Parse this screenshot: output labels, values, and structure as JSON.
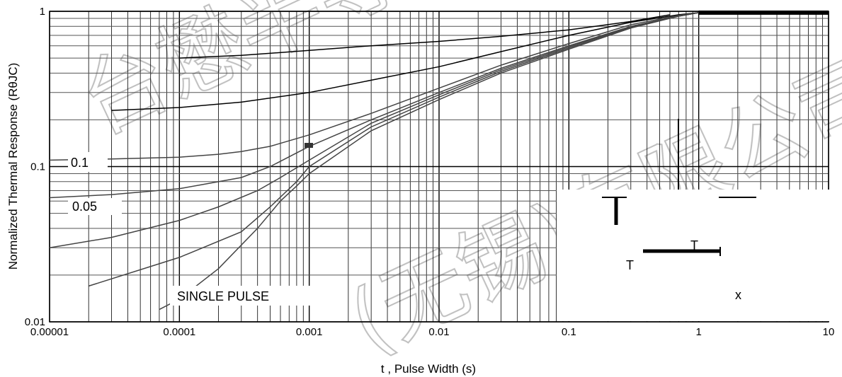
{
  "chart_data": {
    "type": "line",
    "xlabel": "t , Pulse Width (s)",
    "ylabel": "Normalized Thermal Response (RθJC)",
    "x_scale": "log",
    "y_scale": "log",
    "xlim": [
      1e-05,
      10
    ],
    "ylim": [
      0.01,
      1
    ],
    "grid": true,
    "x_ticks": [
      "0.00001",
      "0.0001",
      "0.001",
      "0.01",
      "0.1",
      "1",
      "10"
    ],
    "y_ticks": [
      "0.01",
      "0.1",
      "1"
    ],
    "annotations": [
      "0.1",
      "0.05",
      "SINGLE PULSE",
      "T",
      "T",
      "x"
    ],
    "watermark": "台懋半导体(无锡)有限公司",
    "series": [
      {
        "x": [
          0.0001,
          0.0003,
          0.001,
          0.003,
          0.01,
          0.03,
          0.1,
          0.3,
          0.6
        ],
        "y": [
          0.5,
          0.52,
          0.56,
          0.6,
          0.64,
          0.69,
          0.76,
          0.86,
          0.95
        ]
      },
      {
        "x": [
          3e-05,
          0.0001,
          0.0003,
          0.001,
          0.003,
          0.01,
          0.03,
          0.1,
          0.3,
          0.7,
          1
        ],
        "y": [
          0.23,
          0.24,
          0.26,
          0.3,
          0.36,
          0.44,
          0.55,
          0.7,
          0.85,
          0.95,
          0.98
        ]
      },
      {
        "x": [
          1e-05,
          3e-05,
          0.0001,
          0.0002,
          0.0003,
          0.0005,
          0.001,
          0.003,
          0.01,
          0.03,
          0.1,
          0.3,
          0.7,
          1
        ],
        "y": [
          0.11,
          0.112,
          0.115,
          0.12,
          0.125,
          0.135,
          0.16,
          0.22,
          0.32,
          0.45,
          0.62,
          0.82,
          0.94,
          0.98
        ]
      },
      {
        "x": [
          1e-05,
          3e-05,
          0.0001,
          0.0003,
          0.0005,
          0.001,
          0.003,
          0.01,
          0.03,
          0.1,
          0.3,
          0.7,
          1
        ],
        "y": [
          0.063,
          0.066,
          0.072,
          0.085,
          0.1,
          0.135,
          0.2,
          0.3,
          0.43,
          0.6,
          0.8,
          0.93,
          0.98
        ]
      },
      {
        "x": [
          1e-05,
          3e-05,
          0.0001,
          0.0002,
          0.0004,
          0.0006,
          0.001,
          0.003,
          0.01,
          0.03,
          0.1,
          0.3,
          0.7,
          1
        ],
        "y": [
          0.03,
          0.035,
          0.045,
          0.055,
          0.07,
          0.085,
          0.11,
          0.19,
          0.29,
          0.42,
          0.59,
          0.8,
          0.93,
          0.98
        ]
      },
      {
        "x": [
          2e-05,
          0.0001,
          0.0003,
          0.0005,
          0.0008,
          0.001,
          0.003,
          0.01,
          0.03,
          0.1,
          0.3,
          0.7,
          1
        ],
        "y": [
          0.017,
          0.026,
          0.038,
          0.055,
          0.08,
          0.1,
          0.18,
          0.28,
          0.41,
          0.58,
          0.79,
          0.93,
          0.98
        ]
      },
      {
        "x": [
          7e-05,
          0.0001,
          0.0002,
          0.0004,
          0.0006,
          0.0008,
          0.001,
          0.003,
          0.01,
          0.03,
          0.1,
          0.3,
          0.7,
          1
        ],
        "y": [
          0.012,
          0.014,
          0.022,
          0.04,
          0.06,
          0.075,
          0.09,
          0.17,
          0.27,
          0.4,
          0.57,
          0.78,
          0.93,
          0.98
        ]
      }
    ]
  }
}
